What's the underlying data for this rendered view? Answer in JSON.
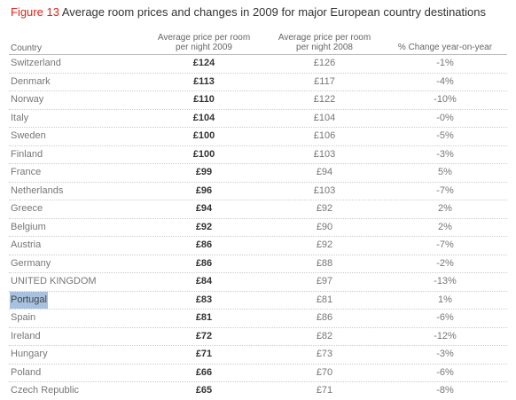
{
  "caption": {
    "figure_label": "Figure 13",
    "title": "Average room prices and changes in 2009 for major European country destinations"
  },
  "table": {
    "headers": {
      "country": "Country",
      "price_2009_line1": "Average price per room",
      "price_2009_line2": "per night 2009",
      "price_2008_line1": "Average price per room",
      "price_2008_line2": "per night 2008",
      "change": "% Change year-on-year"
    },
    "selected_row": "Portugal",
    "rows": [
      {
        "country": "Switzerland",
        "price_2009": "£124",
        "price_2008": "£126",
        "change": "-1%"
      },
      {
        "country": "Denmark",
        "price_2009": "£113",
        "price_2008": "£117",
        "change": "-4%"
      },
      {
        "country": "Norway",
        "price_2009": "£110",
        "price_2008": "£122",
        "change": "-10%"
      },
      {
        "country": "Italy",
        "price_2009": "£104",
        "price_2008": "£104",
        "change": "-0%"
      },
      {
        "country": "Sweden",
        "price_2009": "£100",
        "price_2008": "£106",
        "change": "-5%"
      },
      {
        "country": "Finland",
        "price_2009": "£100",
        "price_2008": "£103",
        "change": "-3%"
      },
      {
        "country": "France",
        "price_2009": "£99",
        "price_2008": "£94",
        "change": "5%"
      },
      {
        "country": "Netherlands",
        "price_2009": "£96",
        "price_2008": "£103",
        "change": "-7%"
      },
      {
        "country": "Greece",
        "price_2009": "£94",
        "price_2008": "£92",
        "change": "2%"
      },
      {
        "country": "Belgium",
        "price_2009": "£92",
        "price_2008": "£90",
        "change": "2%"
      },
      {
        "country": "Austria",
        "price_2009": "£86",
        "price_2008": "£92",
        "change": "-7%"
      },
      {
        "country": "Germany",
        "price_2009": "£86",
        "price_2008": "£88",
        "change": "-2%"
      },
      {
        "country": "UNITED KINGDOM",
        "price_2009": "£84",
        "price_2008": "£97",
        "change": "-13%"
      },
      {
        "country": "Portugal",
        "price_2009": "£83",
        "price_2008": "£81",
        "change": "1%"
      },
      {
        "country": "Spain",
        "price_2009": "£81",
        "price_2008": "£86",
        "change": "-6%"
      },
      {
        "country": "Ireland",
        "price_2009": "£72",
        "price_2008": "£82",
        "change": "-12%"
      },
      {
        "country": "Hungary",
        "price_2009": "£71",
        "price_2008": "£73",
        "change": "-3%"
      },
      {
        "country": "Poland",
        "price_2009": "£66",
        "price_2008": "£70",
        "change": "-6%"
      },
      {
        "country": "Czech Republic",
        "price_2009": "£65",
        "price_2008": "£71",
        "change": "-8%"
      }
    ]
  },
  "colors": {
    "figure_label": "#e2231a",
    "selection_highlight": "#a7c1de"
  }
}
